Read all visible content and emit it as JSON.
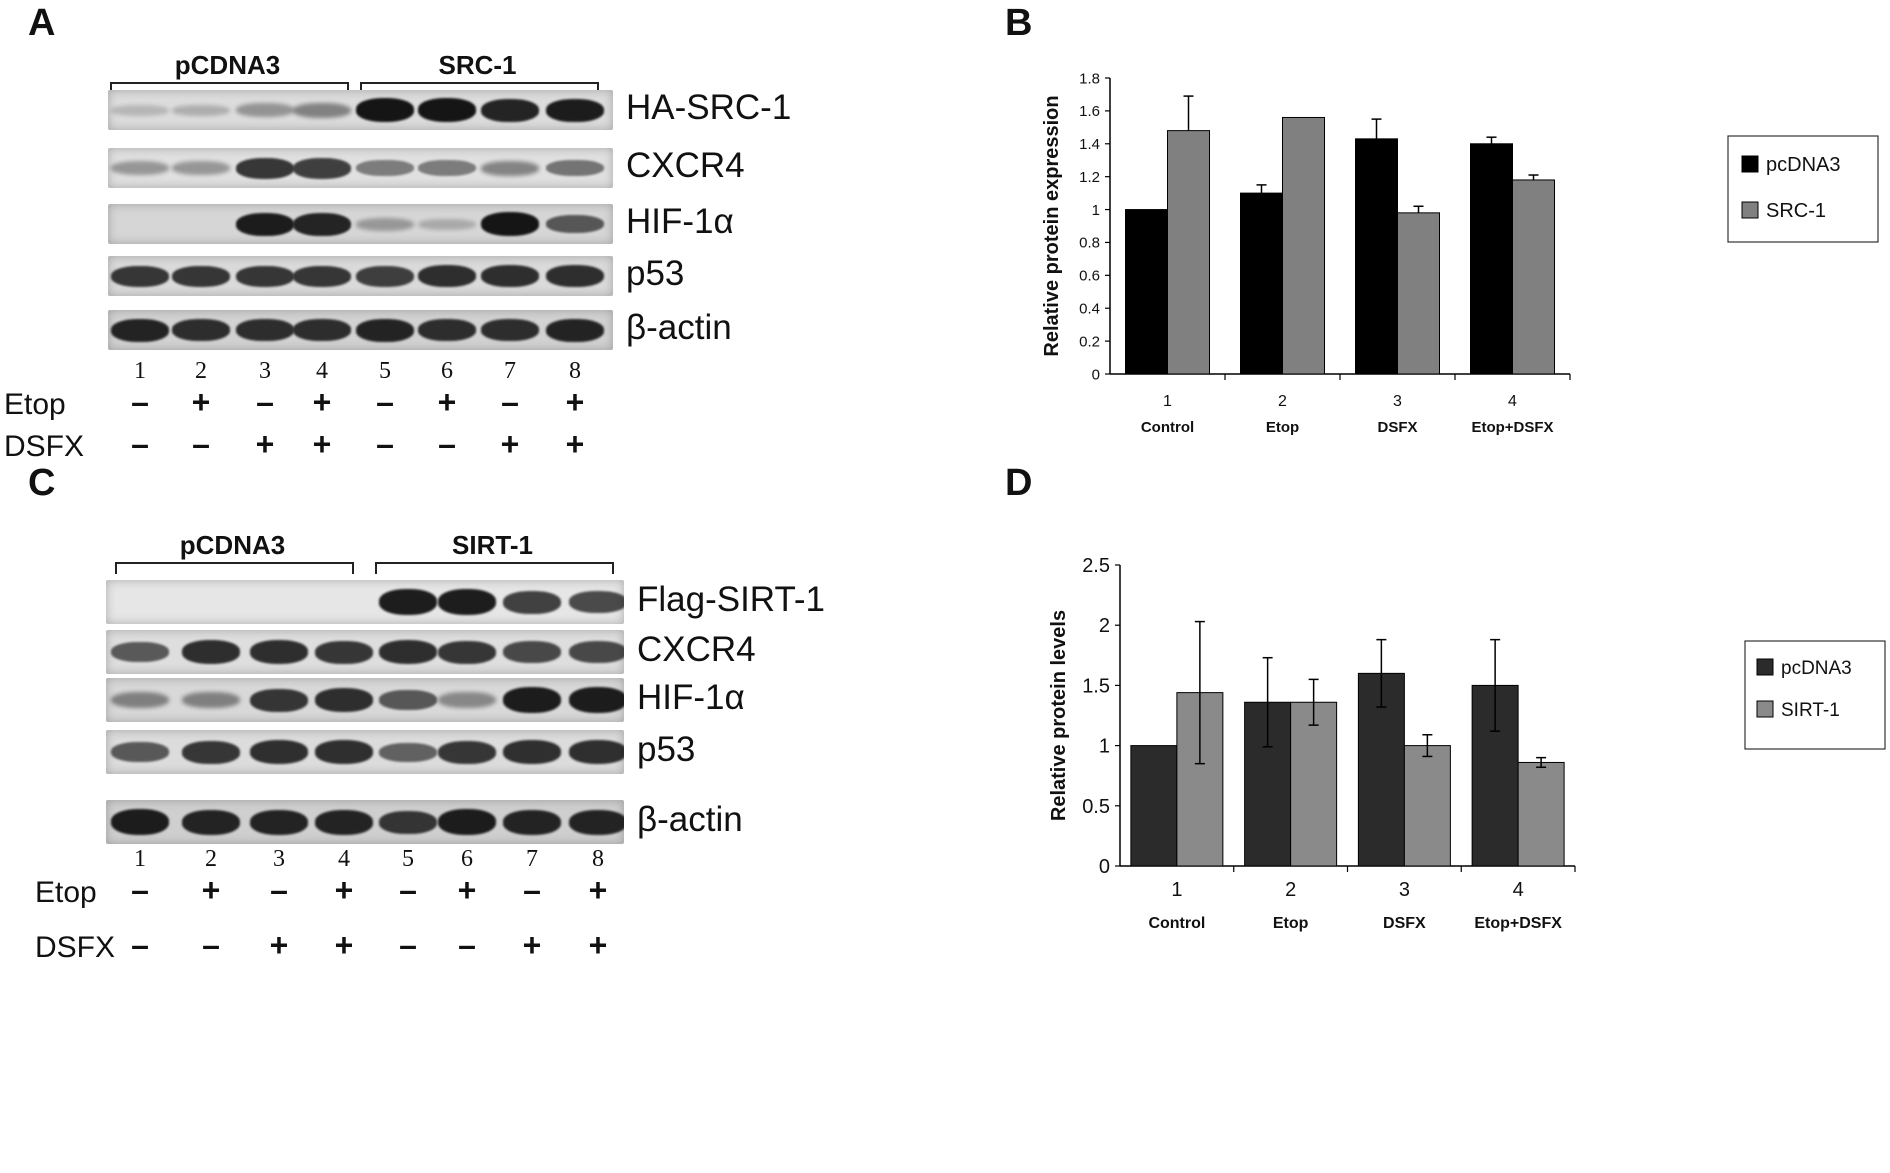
{
  "panels": {
    "A": {
      "letter": "A",
      "groups": [
        "pCDNA3",
        "SRC-1"
      ],
      "rows": [
        {
          "label": "HA-SRC-1",
          "bands": [
            0.05,
            0.1,
            0.25,
            0.35,
            1.0,
            1.0,
            0.9,
            0.95
          ],
          "bg": "#dcdcdc"
        },
        {
          "label": "CXCR4",
          "bands": [
            0.25,
            0.25,
            0.8,
            0.75,
            0.4,
            0.4,
            0.35,
            0.45
          ],
          "bg": "#e0e0e0"
        },
        {
          "label": "HIF-1α",
          "bands": [
            0.0,
            0.0,
            0.95,
            0.9,
            0.2,
            0.1,
            1.0,
            0.6
          ],
          "bg": "#d6d6d6"
        },
        {
          "label": "p53",
          "bands": [
            0.8,
            0.8,
            0.8,
            0.8,
            0.75,
            0.85,
            0.85,
            0.85
          ],
          "bg": "#dadada"
        },
        {
          "label": "β-actin",
          "bands": [
            0.9,
            0.85,
            0.85,
            0.85,
            0.9,
            0.85,
            0.85,
            0.9
          ],
          "bg": "#d2d2d2"
        }
      ],
      "lanes": [
        "1",
        "2",
        "3",
        "4",
        "5",
        "6",
        "7",
        "8"
      ],
      "etop_label": "Etop",
      "dsfx_label": "DSFX",
      "etop": [
        "–",
        "+",
        "–",
        "+",
        "–",
        "+",
        "–",
        "+"
      ],
      "dsfx": [
        "–",
        "–",
        "+",
        "+",
        "–",
        "–",
        "+",
        "+"
      ]
    },
    "C": {
      "letter": "C",
      "groups": [
        "pCDNA3",
        "SIRT-1"
      ],
      "rows": [
        {
          "label": "Flag-SIRT-1",
          "bands": [
            0.0,
            0.0,
            0.0,
            0.0,
            0.95,
            0.95,
            0.75,
            0.7
          ],
          "bg": "#e6e6e6"
        },
        {
          "label": "CXCR4",
          "bands": [
            0.6,
            0.85,
            0.85,
            0.8,
            0.85,
            0.8,
            0.7,
            0.7
          ],
          "bg": "#dedede"
        },
        {
          "label": "HIF-1α",
          "bands": [
            0.35,
            0.35,
            0.8,
            0.85,
            0.6,
            0.3,
            0.95,
            0.95
          ],
          "bg": "#d8d8d8"
        },
        {
          "label": "p53",
          "bands": [
            0.6,
            0.8,
            0.85,
            0.85,
            0.55,
            0.8,
            0.85,
            0.85
          ],
          "bg": "#dcdcdc"
        },
        {
          "label": "β-actin",
          "bands": [
            0.95,
            0.9,
            0.9,
            0.9,
            0.8,
            0.95,
            0.9,
            0.9
          ],
          "bg": "#cfcfcf"
        }
      ],
      "lanes": [
        "1",
        "2",
        "3",
        "4",
        "5",
        "6",
        "7",
        "8"
      ],
      "etop_label": "Etop",
      "dsfx_label": "DSFX",
      "etop": [
        "–",
        "+",
        "–",
        "+",
        "–",
        "+",
        "–",
        "+"
      ],
      "dsfx": [
        "–",
        "–",
        "+",
        "+",
        "–",
        "–",
        "+",
        "+"
      ]
    },
    "B": {
      "letter": "B"
    },
    "D": {
      "letter": "D"
    }
  },
  "chart_data": [
    {
      "panel": "B",
      "type": "bar",
      "categories": [
        "1",
        "2",
        "3",
        "4"
      ],
      "category_sublabels": [
        "Control",
        "Etop",
        "DSFX",
        "Etop+DSFX"
      ],
      "series": [
        {
          "name": "pcDNA3",
          "values": [
            1.0,
            1.1,
            1.43,
            1.4
          ],
          "errors": [
            0.0,
            0.05,
            0.12,
            0.04
          ],
          "color": "#000000"
        },
        {
          "name": "SRC-1",
          "values": [
            1.48,
            1.56,
            0.98,
            1.18
          ],
          "errors": [
            0.21,
            0.0,
            0.04,
            0.03
          ],
          "color": "#808080"
        }
      ],
      "ylabel": "Relative protein expression",
      "xlabel": "",
      "ylim": [
        0,
        1.8
      ],
      "yticks": [
        "0",
        "0.2",
        "0.4",
        "0.6",
        "0.8",
        "1",
        "1.2",
        "1.4",
        "1.6",
        "1.8"
      ],
      "legend": "right"
    },
    {
      "panel": "D",
      "type": "bar",
      "categories": [
        "1",
        "2",
        "3",
        "4"
      ],
      "category_sublabels": [
        "Control",
        "Etop",
        "DSFX",
        "Etop+DSFX"
      ],
      "series": [
        {
          "name": "pcDNA3",
          "values": [
            1.0,
            1.36,
            1.6,
            1.5
          ],
          "errors": [
            0.0,
            0.37,
            0.28,
            0.38
          ],
          "color": "#2b2b2b"
        },
        {
          "name": "SIRT-1",
          "values": [
            1.44,
            1.36,
            1.0,
            0.86
          ],
          "errors": [
            0.59,
            0.19,
            0.09,
            0.04
          ],
          "color": "#8a8a8a"
        }
      ],
      "ylabel": "Relative protein levels",
      "xlabel": "",
      "ylim": [
        0,
        2.5
      ],
      "yticks": [
        "0",
        "0.5",
        "1",
        "1.5",
        "2",
        "2.5"
      ],
      "legend": "right"
    }
  ]
}
